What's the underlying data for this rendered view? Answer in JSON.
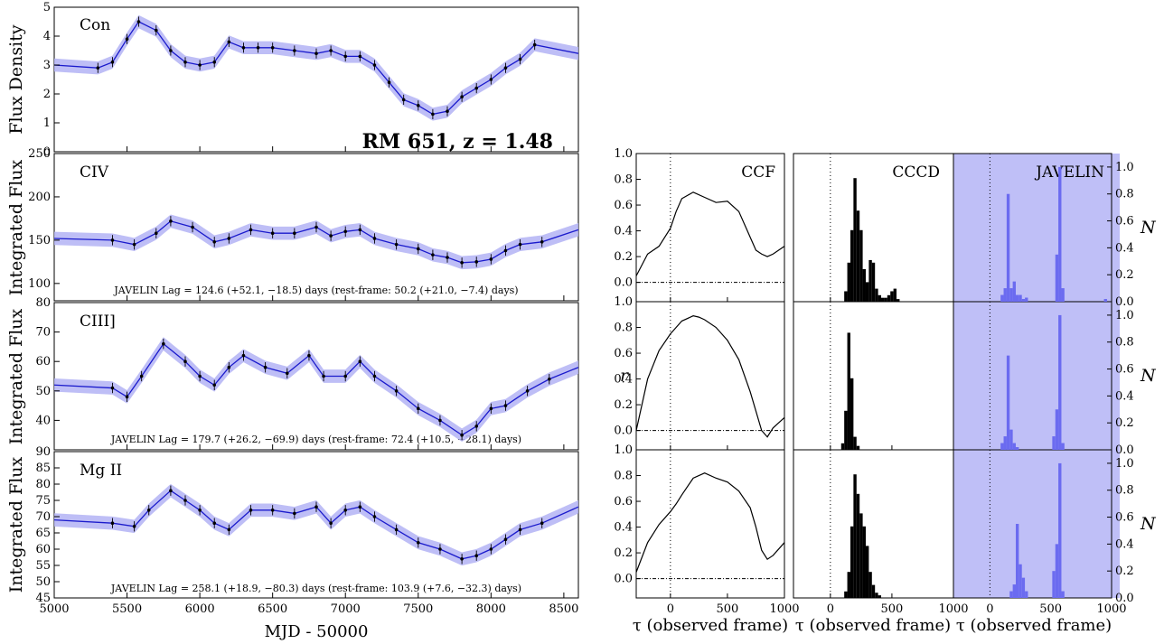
{
  "figure": {
    "title": "RM 651, z = 1.48",
    "xlabel": "MJD - 50000",
    "ylabels": [
      "Flux Density",
      "Integrated Flux",
      "Integrated Flux",
      "Integrated Flux"
    ],
    "r_label": "r",
    "n_label": "N",
    "tau_label": "τ (observed frame)"
  },
  "panels": [
    {
      "label": "Con",
      "ylim": [
        0,
        5
      ],
      "yticks": [
        "0",
        "1",
        "2",
        "3",
        "4",
        "5"
      ],
      "note": ""
    },
    {
      "label": "CIV",
      "ylim": [
        80,
        250
      ],
      "yticks": [
        "100",
        "150",
        "200",
        "250"
      ],
      "note": "JAVELIN Lag = 124.6 (+52.1, −18.5) days (rest-frame: 50.2 (+21.0, −7.4) days)"
    },
    {
      "label": "CIII]",
      "ylim": [
        30,
        80
      ],
      "yticks": [
        "40",
        "50",
        "60",
        "70",
        "80"
      ],
      "note": "JAVELIN Lag = 179.7 (+26.2, −69.9) days (rest-frame: 72.4 (+10.5, −28.1) days)"
    },
    {
      "label": "Mg II",
      "ylim": [
        45,
        90
      ],
      "yticks": [
        "45",
        "50",
        "55",
        "60",
        "65",
        "70",
        "75",
        "80",
        "85",
        "90"
      ],
      "note": "JAVELIN Lag = 258.1 (+18.9, −80.3) days (rest-frame: 103.9 (+7.6, −32.3) days)"
    }
  ],
  "xticks_lc": [
    "5000",
    "5500",
    "6000",
    "6500",
    "7000",
    "7500",
    "8000",
    "8500"
  ],
  "lag_panels": {
    "ccf_title": "CCF",
    "cccd_title": "CCCD",
    "javelin_title": "JAVELIN",
    "r_ticks": [
      "0.0",
      "0.2",
      "0.4",
      "0.6",
      "0.8",
      "1.0"
    ],
    "n_ticks": [
      "0.0",
      "0.2",
      "0.4",
      "0.6",
      "0.8",
      "1.0"
    ],
    "tau_ticks": [
      "0",
      "500",
      "1000"
    ],
    "tau_ticks_javelin": [
      "1000",
      "0",
      "500",
      "1000"
    ]
  },
  "chart_data": [
    {
      "type": "line",
      "title": "RM 651, z = 1.48",
      "panel": "Con",
      "xlabel": "MJD - 50000",
      "ylabel": "Flux Density",
      "xlim": [
        5000,
        8600
      ],
      "ylim": [
        0,
        5
      ],
      "x": [
        5000,
        5300,
        5400,
        5500,
        5580,
        5700,
        5800,
        5900,
        6000,
        6100,
        6200,
        6300,
        6400,
        6500,
        6650,
        6800,
        6900,
        7000,
        7100,
        7200,
        7300,
        7400,
        7500,
        7600,
        7700,
        7800,
        7900,
        8000,
        8100,
        8200,
        8300,
        8600
      ],
      "y": [
        3.0,
        2.9,
        3.1,
        3.9,
        4.5,
        4.2,
        3.5,
        3.1,
        3.0,
        3.1,
        3.8,
        3.6,
        3.6,
        3.6,
        3.5,
        3.4,
        3.5,
        3.3,
        3.3,
        3.0,
        2.4,
        1.8,
        1.6,
        1.3,
        1.4,
        1.9,
        2.2,
        2.5,
        2.9,
        3.2,
        3.7,
        3.4
      ]
    },
    {
      "type": "line",
      "panel": "CIV",
      "ylabel": "Integrated Flux",
      "xlim": [
        5000,
        8600
      ],
      "ylim": [
        80,
        250
      ],
      "x": [
        5000,
        5400,
        5550,
        5700,
        5800,
        5950,
        6100,
        6200,
        6350,
        6500,
        6650,
        6800,
        6900,
        7000,
        7100,
        7200,
        7350,
        7500,
        7600,
        7700,
        7800,
        7900,
        8000,
        8100,
        8200,
        8350,
        8600
      ],
      "y": [
        152,
        150,
        145,
        158,
        172,
        165,
        148,
        152,
        162,
        158,
        158,
        165,
        155,
        160,
        162,
        152,
        145,
        140,
        133,
        130,
        124,
        125,
        128,
        138,
        145,
        148,
        162
      ]
    },
    {
      "type": "line",
      "panel": "CIII]",
      "ylabel": "Integrated Flux",
      "xlim": [
        5000,
        8600
      ],
      "ylim": [
        30,
        80
      ],
      "x": [
        5000,
        5400,
        5500,
        5600,
        5750,
        5900,
        6000,
        6100,
        6200,
        6300,
        6450,
        6600,
        6750,
        6850,
        7000,
        7100,
        7200,
        7350,
        7500,
        7650,
        7800,
        7900,
        8000,
        8100,
        8250,
        8400,
        8600
      ],
      "y": [
        52,
        51,
        48,
        55,
        66,
        60,
        55,
        52,
        58,
        62,
        58,
        56,
        62,
        55,
        55,
        60,
        55,
        50,
        44,
        40,
        35,
        38,
        44,
        45,
        50,
        54,
        58
      ]
    },
    {
      "type": "line",
      "panel": "Mg II",
      "ylabel": "Integrated Flux",
      "xlim": [
        5000,
        8600
      ],
      "ylim": [
        45,
        90
      ],
      "x": [
        5000,
        5400,
        5550,
        5650,
        5800,
        5900,
        6000,
        6100,
        6200,
        6350,
        6500,
        6650,
        6800,
        6900,
        7000,
        7100,
        7200,
        7350,
        7500,
        7650,
        7800,
        7900,
        8000,
        8100,
        8200,
        8350,
        8600
      ],
      "y": [
        69,
        68,
        67,
        72,
        78,
        75,
        72,
        68,
        66,
        72,
        72,
        71,
        73,
        68,
        72,
        73,
        70,
        66,
        62,
        60,
        57,
        58,
        60,
        63,
        66,
        68,
        73
      ]
    },
    {
      "type": "line",
      "title": "CCF",
      "xlabel": "τ (observed frame)",
      "ylabel": "r",
      "xlim": [
        -300,
        1000
      ],
      "ylim": [
        -0.15,
        1.0
      ],
      "series": [
        {
          "x": [
            -300,
            -200,
            -100,
            0,
            50,
            100,
            200,
            300,
            400,
            500,
            600,
            700,
            750,
            800,
            850,
            900,
            1000
          ],
          "y": [
            0.05,
            0.22,
            0.28,
            0.42,
            0.55,
            0.65,
            0.7,
            0.66,
            0.62,
            0.63,
            0.55,
            0.35,
            0.25,
            0.22,
            0.2,
            0.22,
            0.28
          ]
        },
        {
          "x": [
            -300,
            -200,
            -100,
            0,
            50,
            100,
            200,
            250,
            300,
            400,
            500,
            600,
            700,
            750,
            800,
            850,
            900,
            1000
          ],
          "y": [
            0.0,
            0.4,
            0.62,
            0.75,
            0.8,
            0.85,
            0.89,
            0.88,
            0.86,
            0.8,
            0.7,
            0.55,
            0.3,
            0.15,
            0.0,
            -0.05,
            0.02,
            0.1
          ]
        },
        {
          "x": [
            -300,
            -200,
            -100,
            0,
            50,
            100,
            200,
            300,
            400,
            500,
            600,
            700,
            750,
            800,
            850,
            900,
            1000
          ],
          "y": [
            0.05,
            0.28,
            0.42,
            0.52,
            0.58,
            0.65,
            0.78,
            0.82,
            0.78,
            0.75,
            0.68,
            0.55,
            0.4,
            0.22,
            0.15,
            0.18,
            0.28
          ]
        }
      ]
    },
    {
      "type": "bar",
      "title": "CCCD",
      "xlabel": "τ (observed frame)",
      "xlim": [
        -300,
        1000
      ],
      "series": [
        {
          "x": [
            125,
            150,
            175,
            200,
            225,
            250,
            275,
            300,
            325,
            350,
            375,
            400,
            425,
            450,
            475,
            500,
            525,
            550
          ],
          "y": [
            0.08,
            0.3,
            0.55,
            0.95,
            0.7,
            0.55,
            0.25,
            0.15,
            0.32,
            0.3,
            0.1,
            0.05,
            0.03,
            0.03,
            0.05,
            0.08,
            0.1,
            0.02
          ]
        },
        {
          "x": [
            100,
            125,
            150,
            175,
            200,
            225
          ],
          "y": [
            0.05,
            0.3,
            0.9,
            0.55,
            0.1,
            0.03
          ]
        },
        {
          "x": [
            125,
            150,
            175,
            200,
            225,
            250,
            275,
            300,
            325,
            350,
            375,
            400
          ],
          "y": [
            0.05,
            0.2,
            0.55,
            0.95,
            0.8,
            0.65,
            0.55,
            0.4,
            0.2,
            0.1,
            0.04,
            0.02
          ]
        }
      ]
    },
    {
      "type": "bar",
      "title": "JAVELIN",
      "xlabel": "τ (observed frame)",
      "ylabel": "N",
      "xlim": [
        -300,
        1000
      ],
      "ylim": [
        0,
        1.1
      ],
      "series": [
        {
          "x": [
            100,
            125,
            150,
            175,
            200,
            225,
            250,
            275,
            300,
            550,
            575,
            600,
            950
          ],
          "y": [
            0.05,
            0.1,
            0.8,
            0.1,
            0.15,
            0.05,
            0.05,
            0.02,
            0.03,
            0.35,
            1.0,
            0.1,
            0.02
          ]
        },
        {
          "x": [
            100,
            125,
            150,
            175,
            200,
            225,
            525,
            550,
            575,
            600
          ],
          "y": [
            0.05,
            0.1,
            0.7,
            0.15,
            0.05,
            0.02,
            0.1,
            0.3,
            1.0,
            0.05
          ]
        },
        {
          "x": [
            175,
            200,
            225,
            250,
            275,
            300,
            525,
            550,
            575,
            600
          ],
          "y": [
            0.05,
            0.1,
            0.55,
            0.25,
            0.15,
            0.05,
            0.2,
            0.4,
            1.0,
            0.05
          ]
        }
      ]
    }
  ]
}
